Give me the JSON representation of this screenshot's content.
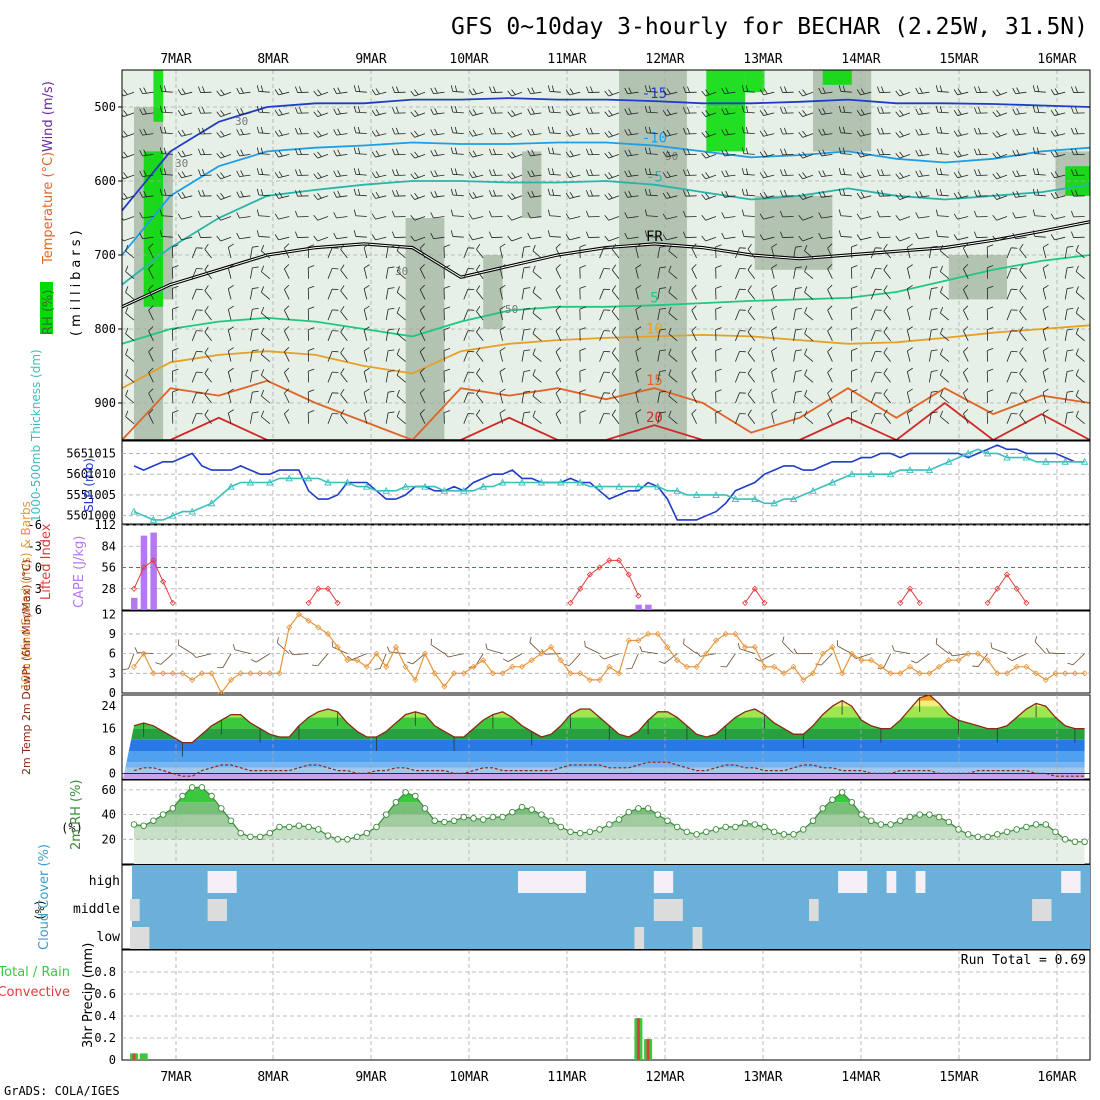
{
  "title": "GFS 0~10day 3-hourly for BECHAR (2.25W, 31.5N)",
  "footer": "GrADS: COLA/IGES",
  "dates": [
    "7MAR",
    "8MAR",
    "9MAR",
    "10MAR",
    "11MAR",
    "12MAR",
    "13MAR",
    "14MAR",
    "15MAR",
    "16MAR"
  ],
  "colors": {
    "rh_green": "#00dc00",
    "rh_dark": "#a0b4a0",
    "rh_light": "#e6f0e6",
    "slp": "#1e3cc8",
    "thickness": "#3cbebe",
    "cape": "#b478f0",
    "lifted": "#e03c3c",
    "wind10": "#e6963c",
    "temp_line": "#8c2814",
    "dewpt_line": "#8c2814",
    "rh2m_fill": "#78c878",
    "cloud": "#6ab0d8",
    "cloud_gap": "#f5f0f5",
    "precip_total": "#3cc83c",
    "precip_conv": "#e03c3c"
  },
  "chart_data": [
    {
      "type": "heatmap",
      "panel": "upper-air",
      "ylabels": [
        "Wind (m/s)",
        "Temperature (°C)",
        "RH (%)",
        "(millibars)"
      ],
      "ylim": [
        950,
        450
      ],
      "yticks": [
        500,
        600,
        700,
        800,
        900
      ],
      "temperature_contours": [
        {
          "label": "-15",
          "color": "#1e3cc8",
          "p": [
            640,
            560,
            520,
            500,
            495,
            495,
            490,
            490,
            488,
            490,
            490,
            492,
            495,
            495,
            493,
            490,
            495,
            495,
            496,
            498,
            500
          ]
        },
        {
          "label": "-10",
          "color": "#1e9ee6",
          "p": [
            700,
            620,
            580,
            560,
            555,
            552,
            548,
            550,
            550,
            548,
            548,
            552,
            560,
            568,
            565,
            560,
            570,
            575,
            570,
            560,
            555
          ]
        },
        {
          "label": "-5",
          "color": "#28b4aa",
          "p": [
            740,
            690,
            650,
            620,
            612,
            605,
            600,
            600,
            602,
            602,
            600,
            605,
            615,
            625,
            620,
            610,
            620,
            625,
            620,
            615,
            605
          ]
        },
        {
          "label": "FR",
          "color": "#000000",
          "p": [
            770,
            740,
            720,
            700,
            690,
            685,
            690,
            730,
            715,
            700,
            690,
            685,
            690,
            700,
            705,
            700,
            695,
            690,
            680,
            668,
            655
          ]
        },
        {
          "label": "5",
          "color": "#1ec882",
          "p": [
            820,
            800,
            790,
            785,
            790,
            800,
            810,
            790,
            775,
            770,
            770,
            768,
            765,
            762,
            760,
            758,
            750,
            735,
            720,
            708,
            700
          ]
        },
        {
          "label": "10",
          "color": "#e6a028",
          "p": [
            880,
            845,
            835,
            830,
            835,
            850,
            860,
            830,
            820,
            815,
            812,
            810,
            808,
            810,
            815,
            820,
            818,
            812,
            805,
            800,
            795
          ]
        },
        {
          "label": "15",
          "color": "#e06428",
          "p": [
            950,
            880,
            890,
            870,
            900,
            925,
            950,
            880,
            890,
            880,
            895,
            880,
            900,
            940,
            920,
            880,
            920,
            880,
            915,
            890,
            900
          ]
        },
        {
          "label": "20",
          "color": "#d22828",
          "p": [
            950,
            950,
            920,
            950,
            950,
            950,
            950,
            950,
            920,
            950,
            950,
            930,
            950,
            950,
            950,
            920,
            950,
            900,
            950,
            915,
            950
          ]
        }
      ],
      "rh_labels": [
        "30",
        "30",
        "30",
        "50",
        "50"
      ]
    },
    {
      "type": "line",
      "panel": "slp-thickness",
      "ylabel_left": "1000-500mb Thickness (dm)",
      "ylabel_right": "SLP (mb)",
      "left_ticks": [
        550,
        555,
        560,
        565
      ],
      "right_ticks": [
        1000,
        1005,
        1010,
        1015
      ],
      "ylim_slp": [
        998,
        1018
      ],
      "series": [
        {
          "name": "SLP (mb)",
          "axis": "right",
          "values": [
            1012,
            1011,
            1012,
            1013,
            1013,
            1014,
            1015,
            1012,
            1011,
            1011,
            1011,
            1012,
            1011,
            1010,
            1010,
            1011,
            1011,
            1011,
            1006,
            1004,
            1004,
            1005,
            1008,
            1008,
            1008,
            1006,
            1004,
            1004,
            1005,
            1007,
            1007,
            1006,
            1006,
            1007,
            1006,
            1008,
            1009,
            1010,
            1010,
            1011,
            1009,
            1009,
            1008,
            1008,
            1008,
            1009,
            1008,
            1008,
            1006,
            1004,
            1005,
            1006,
            1006,
            1008,
            1007,
            1004,
            999,
            999,
            999,
            1000,
            1001,
            1003,
            1006,
            1007,
            1008,
            1010,
            1011,
            1012,
            1012,
            1011,
            1011,
            1012,
            1013,
            1013,
            1013,
            1014,
            1014,
            1015,
            1015,
            1014,
            1015,
            1015,
            1015,
            1015,
            1015,
            1015,
            1014,
            1015,
            1016,
            1017,
            1016,
            1016,
            1015,
            1015,
            1015,
            1015,
            1014,
            1013,
            1013
          ]
        },
        {
          "name": "1000-500mb Thickness (dm)",
          "axis": "left",
          "values": [
            1001,
            1000,
            999,
            999,
            1000,
            1001,
            1001,
            1002,
            1003,
            1005,
            1007,
            1008,
            1008,
            1008,
            1008,
            1009,
            1009,
            1009,
            1009,
            1009,
            1008,
            1008,
            1008,
            1007,
            1007,
            1006,
            1006,
            1006,
            1007,
            1007,
            1007,
            1007,
            1006,
            1006,
            1006,
            1006,
            1007,
            1007,
            1008,
            1008,
            1008,
            1008,
            1008,
            1008,
            1008,
            1008,
            1008,
            1007,
            1007,
            1007,
            1007,
            1007,
            1007,
            1007,
            1007,
            1006,
            1006,
            1005,
            1005,
            1005,
            1005,
            1005,
            1004,
            1004,
            1004,
            1003,
            1003,
            1004,
            1004,
            1005,
            1006,
            1007,
            1008,
            1009,
            1010,
            1010,
            1010,
            1010,
            1010,
            1011,
            1011,
            1011,
            1011,
            1012,
            1013,
            1014,
            1015,
            1016,
            1015,
            1015,
            1014,
            1014,
            1014,
            1013,
            1013,
            1013,
            1013,
            1013,
            1013
          ]
        }
      ]
    },
    {
      "type": "bar",
      "panel": "cape-li",
      "ylabel_left": "CAPE (J/kg)",
      "ylabel_right": "Lifted Index",
      "cape_ticks": [
        28,
        56,
        84,
        112
      ],
      "li_ticks": [
        "6",
        "3",
        "0",
        "-3",
        "-6"
      ],
      "cape_bars": [
        {
          "i": 0,
          "v": 16
        },
        {
          "i": 1,
          "v": 98
        },
        {
          "i": 2,
          "v": 102
        },
        {
          "i": 52,
          "v": 7
        },
        {
          "i": 53,
          "v": 7
        }
      ],
      "lifted_index": [
        {
          "i": 0,
          "v": 3
        },
        {
          "i": 1,
          "v": 0
        },
        {
          "i": 2,
          "v": -1
        },
        {
          "i": 3,
          "v": 2
        },
        {
          "i": 4,
          "v": 5
        },
        {
          "i": 18,
          "v": 5
        },
        {
          "i": 19,
          "v": 3
        },
        {
          "i": 20,
          "v": 3
        },
        {
          "i": 21,
          "v": 5
        },
        {
          "i": 45,
          "v": 5
        },
        {
          "i": 46,
          "v": 3
        },
        {
          "i": 47,
          "v": 1
        },
        {
          "i": 48,
          "v": 0
        },
        {
          "i": 49,
          "v": -1
        },
        {
          "i": 50,
          "v": -1
        },
        {
          "i": 51,
          "v": 1
        },
        {
          "i": 52,
          "v": 4
        },
        {
          "i": 63,
          "v": 5
        },
        {
          "i": 64,
          "v": 3
        },
        {
          "i": 65,
          "v": 5
        },
        {
          "i": 79,
          "v": 5
        },
        {
          "i": 80,
          "v": 3
        },
        {
          "i": 81,
          "v": 5
        },
        {
          "i": 88,
          "v": 5
        },
        {
          "i": 89,
          "v": 3
        },
        {
          "i": 90,
          "v": 1
        },
        {
          "i": 91,
          "v": 3
        },
        {
          "i": 92,
          "v": 5
        }
      ]
    },
    {
      "type": "line",
      "panel": "wind10m",
      "ylabel": "10m Wind Speed (m/s) & Barbs",
      "ylim": [
        0,
        12
      ],
      "yticks": [
        0,
        3,
        6,
        9,
        12
      ],
      "values": [
        4,
        6,
        3,
        3,
        3,
        3,
        2,
        3,
        3,
        0,
        2,
        3,
        3,
        3,
        3,
        3,
        10,
        12,
        11,
        10,
        9,
        7,
        5,
        5,
        4,
        6,
        4,
        7,
        4,
        2,
        6,
        3,
        1,
        3,
        3,
        4,
        5,
        3,
        3,
        4,
        4,
        5,
        6,
        7,
        5,
        3,
        3,
        2,
        2,
        4,
        3,
        8,
        8,
        9,
        9,
        7,
        5,
        4,
        4,
        6,
        8,
        9,
        9,
        7,
        7,
        4,
        4,
        3,
        4,
        2,
        3,
        6,
        7,
        3,
        6,
        5,
        5,
        4,
        3,
        3,
        4,
        3,
        3,
        4,
        5,
        5,
        6,
        6,
        5,
        3,
        3,
        4,
        4,
        3,
        2,
        3,
        3,
        3,
        3
      ]
    },
    {
      "type": "area",
      "panel": "temp2m",
      "ylabel": "2m Temp 2m DewPt (6hr Min/Max) (°C)",
      "ylim": [
        -2,
        28
      ],
      "yticks": [
        0,
        8,
        16,
        24
      ],
      "temperature": [
        17,
        18,
        17,
        15,
        13,
        11,
        11,
        14,
        17,
        19,
        21,
        21,
        18,
        16,
        14,
        13,
        13,
        17,
        20,
        22,
        23,
        22,
        18,
        15,
        13,
        13,
        15,
        18,
        21,
        22,
        21,
        17,
        15,
        13,
        13,
        16,
        19,
        21,
        22,
        20,
        17,
        15,
        13,
        14,
        17,
        21,
        23,
        23,
        20,
        17,
        14,
        13,
        15,
        19,
        22,
        22,
        20,
        17,
        14,
        13,
        14,
        17,
        20,
        22,
        23,
        21,
        18,
        16,
        14,
        14,
        17,
        21,
        24,
        26,
        24,
        19,
        17,
        16,
        16,
        19,
        23,
        27,
        28,
        25,
        21,
        19,
        18,
        17,
        16,
        16,
        17,
        20,
        23,
        25,
        24,
        20,
        17,
        16,
        16
      ],
      "dewpoint": [
        1,
        2,
        2,
        1,
        0,
        -1,
        -1,
        1,
        2,
        3,
        3,
        2,
        1,
        1,
        1,
        1,
        1,
        2,
        3,
        3,
        2,
        1,
        1,
        0,
        0,
        1,
        1,
        2,
        2,
        1,
        1,
        1,
        1,
        0,
        0,
        1,
        2,
        2,
        1,
        1,
        1,
        1,
        1,
        1,
        2,
        3,
        3,
        3,
        3,
        2,
        2,
        2,
        3,
        4,
        4,
        4,
        3,
        2,
        1,
        1,
        2,
        3,
        3,
        2,
        2,
        1,
        1,
        1,
        2,
        3,
        3,
        2,
        2,
        1,
        1,
        1,
        0,
        0,
        0,
        1,
        1,
        1,
        1,
        0,
        0,
        0,
        0,
        1,
        1,
        1,
        1,
        1,
        1,
        0,
        0,
        -1,
        -1,
        -1,
        -1
      ]
    },
    {
      "type": "area",
      "panel": "rh2m",
      "ylabel": "2m RH (%)",
      "ylim": [
        0,
        68
      ],
      "yticks": [
        20,
        40,
        60
      ],
      "values": [
        32,
        31,
        35,
        40,
        45,
        55,
        62,
        62,
        55,
        45,
        35,
        25,
        22,
        22,
        25,
        30,
        30,
        31,
        30,
        28,
        23,
        20,
        20,
        22,
        25,
        30,
        40,
        50,
        58,
        55,
        45,
        35,
        34,
        35,
        38,
        37,
        36,
        38,
        38,
        42,
        46,
        44,
        40,
        35,
        30,
        26,
        25,
        26,
        28,
        32,
        36,
        42,
        45,
        45,
        40,
        35,
        30,
        26,
        24,
        26,
        28,
        30,
        30,
        33,
        32,
        30,
        26,
        24,
        24,
        28,
        35,
        45,
        52,
        58,
        50,
        40,
        35,
        32,
        32,
        35,
        38,
        40,
        40,
        38,
        34,
        28,
        24,
        22,
        22,
        24,
        26,
        28,
        30,
        32,
        32,
        26,
        20,
        18,
        18
      ]
    },
    {
      "type": "heatmap",
      "panel": "cloud",
      "ylabel": "Cloud Cover (%)",
      "rows": [
        "high",
        "middle",
        "low"
      ],
      "high_gaps": [
        [
          8,
          11
        ],
        [
          40,
          47
        ],
        [
          54,
          56
        ],
        [
          73,
          76
        ],
        [
          78,
          79
        ],
        [
          81,
          82
        ],
        [
          96,
          98
        ]
      ],
      "middle_gaps": [
        [
          0,
          1
        ],
        [
          8,
          10
        ],
        [
          54,
          57
        ],
        [
          70,
          71
        ],
        [
          93,
          95
        ]
      ],
      "low_gaps": [
        [
          0,
          2
        ],
        [
          52,
          53
        ],
        [
          58,
          59
        ]
      ]
    },
    {
      "type": "bar",
      "panel": "precip",
      "ylabel_left": "Total / Rain",
      "ylabel_right": "Convective",
      "ylabel_axis": "3hr Precip (mm)",
      "ylim": [
        0,
        1
      ],
      "yticks": [
        "0",
        "0.2",
        "0.4",
        "0.6",
        "0.8"
      ],
      "run_total": "Run Total = 0.69",
      "bars": [
        {
          "i": 0,
          "total": 0.06,
          "conv": 0.06
        },
        {
          "i": 1,
          "total": 0.06,
          "conv": 0.0
        },
        {
          "i": 52,
          "total": 0.38,
          "conv": 0.38
        },
        {
          "i": 53,
          "total": 0.19,
          "conv": 0.19
        }
      ]
    }
  ]
}
